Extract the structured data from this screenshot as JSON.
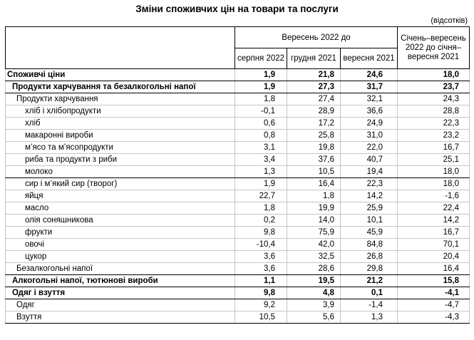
{
  "title": "Зміни споживчих цін на товари та послуги",
  "unit_note": "(відсотків)",
  "table": {
    "col_group_header": "Вересень 2022 до",
    "sub_headers": [
      "серпня 2022",
      "грудня 2021",
      "вересня 2021"
    ],
    "period_header": "Січень–вересень 2022 до січня–вересня 2021",
    "rows": [
      {
        "label": "Споживчі ціни",
        "indent": 0,
        "bold": true,
        "sep": true,
        "values": [
          "1,9",
          "21,8",
          "24,6",
          "18,0"
        ]
      },
      {
        "label": "Продукти харчування та безалкогольні напої",
        "indent": 1,
        "bold": true,
        "sep": true,
        "values": [
          "1,9",
          "27,3",
          "31,7",
          "23,7"
        ]
      },
      {
        "label": "Продукти харчування",
        "indent": 2,
        "bold": false,
        "sep": false,
        "values": [
          "1,8",
          "27,4",
          "32,1",
          "24,3"
        ]
      },
      {
        "label": "хліб і хлібопродукти",
        "indent": 3,
        "bold": false,
        "sep": false,
        "values": [
          "-0,1",
          "28,9",
          "36,6",
          "28,8"
        ]
      },
      {
        "label": "хліб",
        "indent": 3,
        "bold": false,
        "sep": false,
        "values": [
          "0,6",
          "17,2",
          "24,9",
          "22,3"
        ]
      },
      {
        "label": "макаронні вироби",
        "indent": 3,
        "bold": false,
        "sep": false,
        "values": [
          "0,8",
          "25,8",
          "31,0",
          "23,2"
        ]
      },
      {
        "label": "м’ясо та м’ясопродукти",
        "indent": 3,
        "bold": false,
        "sep": false,
        "values": [
          "3,1",
          "19,8",
          "22,0",
          "16,7"
        ]
      },
      {
        "label": "риба та продукти з риби",
        "indent": 3,
        "bold": false,
        "sep": false,
        "values": [
          "3,4",
          "37,6",
          "40,7",
          "25,1"
        ]
      },
      {
        "label": "молоко",
        "indent": 3,
        "bold": false,
        "sep": true,
        "values": [
          "1,3",
          "10,5",
          "19,4",
          "18,0"
        ]
      },
      {
        "label": "сир і м’який сир (творог)",
        "indent": 3,
        "bold": false,
        "sep": false,
        "values": [
          "1,9",
          "16,4",
          "22,3",
          "18,0"
        ]
      },
      {
        "label": "яйця",
        "indent": 3,
        "bold": false,
        "sep": false,
        "values": [
          "22,7",
          "1,8",
          "14,2",
          "-1,6"
        ]
      },
      {
        "label": "масло",
        "indent": 3,
        "bold": false,
        "sep": false,
        "values": [
          "1,8",
          "19,9",
          "25,9",
          "22,4"
        ]
      },
      {
        "label": "олія соняшникова",
        "indent": 3,
        "bold": false,
        "sep": false,
        "values": [
          "0,2",
          "14,0",
          "10,1",
          "14,2"
        ]
      },
      {
        "label": "фрукти",
        "indent": 3,
        "bold": false,
        "sep": false,
        "values": [
          "9,8",
          "75,9",
          "45,9",
          "16,7"
        ]
      },
      {
        "label": "овочі",
        "indent": 3,
        "bold": false,
        "sep": false,
        "values": [
          "-10,4",
          "42,0",
          "84,8",
          "70,1"
        ]
      },
      {
        "label": "цукор",
        "indent": 3,
        "bold": false,
        "sep": false,
        "values": [
          "3,6",
          "32,5",
          "26,8",
          "20,4"
        ]
      },
      {
        "label": "Безалкогольні напої",
        "indent": 2,
        "bold": false,
        "sep": true,
        "values": [
          "3,6",
          "28,6",
          "29,8",
          "16,4"
        ]
      },
      {
        "label": "Алкогольні напої, тютюнові вироби",
        "indent": 1,
        "bold": true,
        "sep": true,
        "values": [
          "1,1",
          "19,5",
          "21,2",
          "15,8"
        ]
      },
      {
        "label": "Одяг і взуття",
        "indent": 1,
        "bold": true,
        "sep": true,
        "values": [
          "9,8",
          "4,8",
          "0,1",
          "-4,1"
        ]
      },
      {
        "label": "Одяг",
        "indent": 2,
        "bold": false,
        "sep": false,
        "values": [
          "9,2",
          "3,9",
          "-1,4",
          "-4,7"
        ]
      },
      {
        "label": "Взуття",
        "indent": 2,
        "bold": false,
        "sep": false,
        "values": [
          "10,5",
          "5,6",
          "1,3",
          "-4,3"
        ]
      }
    ]
  }
}
